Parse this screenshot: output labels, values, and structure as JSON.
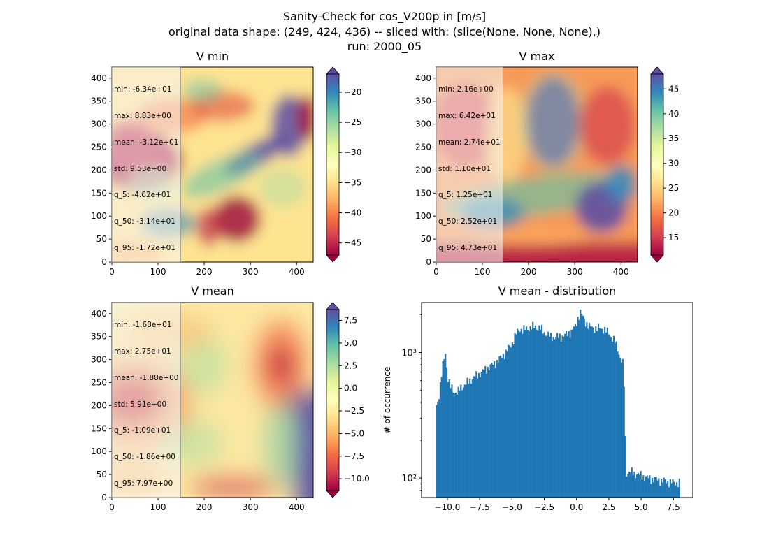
{
  "figure": {
    "title_lines": [
      "Sanity-Check for cos_V200p in [m/s]",
      "original data shape: (249, 424, 436) -- sliced with: (slice(None, None, None),)",
      "run: 2000_05"
    ]
  },
  "chart_data": [
    {
      "type": "heatmap",
      "title": "V min",
      "colormap": "Spectral",
      "xlim": [
        0,
        436
      ],
      "ylim": [
        0,
        424
      ],
      "x_ticks": [
        "0",
        "100",
        "200",
        "300",
        "400"
      ],
      "y_ticks": [
        "0",
        "50",
        "100",
        "150",
        "200",
        "250",
        "300",
        "350",
        "400"
      ],
      "colorbar": {
        "range": [
          -47,
          -17
        ],
        "ticks": [
          "−45",
          "−40",
          "−35",
          "−30",
          "−25",
          "−20"
        ],
        "tick_values": [
          -45,
          -40,
          -35,
          -30,
          -25,
          -20
        ],
        "extend": "both"
      },
      "stats": [
        "min: -6.34e+01",
        "max: 8.83e+00",
        "mean: -3.12e+01",
        "std: 9.53e+00",
        "q_5: -4.62e+01",
        "q_50: -3.14e+01",
        "q_95: -1.72e+01"
      ]
    },
    {
      "type": "heatmap",
      "title": "V max",
      "colormap": "Spectral",
      "xlim": [
        0,
        436
      ],
      "ylim": [
        0,
        424
      ],
      "x_ticks": [
        "0",
        "100",
        "200",
        "300",
        "400"
      ],
      "y_ticks": [
        "0",
        "50",
        "100",
        "150",
        "200",
        "250",
        "300",
        "350",
        "400"
      ],
      "colorbar": {
        "range": [
          11.5,
          48
        ],
        "ticks": [
          "15",
          "20",
          "25",
          "30",
          "35",
          "40",
          "45"
        ],
        "tick_values": [
          15,
          20,
          25,
          30,
          35,
          40,
          45
        ],
        "extend": "both"
      },
      "stats": [
        "min: 2.16e+00",
        "max: 6.42e+01",
        "mean: 2.74e+01",
        "std: 1.10e+01",
        "q_5: 1.25e+01",
        "q_50: 2.52e+01",
        "q_95: 4.73e+01"
      ]
    },
    {
      "type": "heatmap",
      "title": "V mean",
      "colormap": "Spectral",
      "xlim": [
        0,
        436
      ],
      "ylim": [
        0,
        424
      ],
      "x_ticks": [
        "0",
        "100",
        "200",
        "300",
        "400"
      ],
      "y_ticks": [
        "0",
        "50",
        "100",
        "150",
        "200",
        "250",
        "300",
        "350",
        "400"
      ],
      "colorbar": {
        "range": [
          -11.3,
          8.7
        ],
        "ticks": [
          "−10.0",
          "−7.5",
          "−5.0",
          "−2.5",
          "0.0",
          "2.5",
          "5.0",
          "7.5"
        ],
        "tick_values": [
          -10,
          -7.5,
          -5,
          -2.5,
          0,
          2.5,
          5,
          7.5
        ],
        "extend": "both"
      },
      "stats": [
        "min: -1.68e+01",
        "max: 2.75e+01",
        "mean: -1.88e+00",
        "std: 5.91e+00",
        "q_5: -1.09e+01",
        "q_50: -1.86e+00",
        "q_95: 7.97e+00"
      ]
    },
    {
      "type": "bar",
      "subtype": "histogram",
      "title": "V mean - distribution",
      "xlabel": "",
      "ylabel": "# of occurrence",
      "yscale": "log",
      "xlim": [
        -12.0,
        9.0
      ],
      "ylim": [
        70,
        2500
      ],
      "x_ticks": [
        "−10.0",
        "−7.5",
        "−5.0",
        "−2.5",
        "0.0",
        "2.5",
        "5.0",
        "7.5"
      ],
      "x_tick_values": [
        -10,
        -7.5,
        -5,
        -2.5,
        0,
        2.5,
        5,
        7.5
      ],
      "y_ticks": [
        "10²",
        "10³"
      ],
      "y_tick_values": [
        100,
        1000
      ],
      "color": "#1f77b4",
      "bin_range": [
        -10.9,
        8.0
      ],
      "envelope": [
        [
          -10.9,
          370
        ],
        [
          -10.7,
          420
        ],
        [
          -10.5,
          600
        ],
        [
          -10.3,
          850
        ],
        [
          -10.15,
          1000
        ],
        [
          -10.0,
          650
        ],
        [
          -9.8,
          540
        ],
        [
          -9.5,
          490
        ],
        [
          -9.2,
          480
        ],
        [
          -9.0,
          520
        ],
        [
          -8.5,
          570
        ],
        [
          -8.0,
          630
        ],
        [
          -7.5,
          680
        ],
        [
          -7.0,
          740
        ],
        [
          -6.5,
          800
        ],
        [
          -6.0,
          880
        ],
        [
          -5.5,
          1000
        ],
        [
          -5.0,
          1180
        ],
        [
          -4.7,
          1400
        ],
        [
          -4.4,
          1560
        ],
        [
          -4.2,
          1500
        ],
        [
          -3.8,
          1560
        ],
        [
          -3.2,
          1610
        ],
        [
          -2.8,
          1560
        ],
        [
          -2.5,
          1450
        ],
        [
          -2.0,
          1330
        ],
        [
          -1.5,
          1330
        ],
        [
          -1.0,
          1360
        ],
        [
          -0.5,
          1450
        ],
        [
          -0.1,
          1600
        ],
        [
          0.1,
          1900
        ],
        [
          0.3,
          2100
        ],
        [
          0.6,
          1800
        ],
        [
          1.0,
          1600
        ],
        [
          1.5,
          1560
        ],
        [
          2.0,
          1560
        ],
        [
          2.5,
          1420
        ],
        [
          3.0,
          1200
        ],
        [
          3.4,
          900
        ],
        [
          3.6,
          800
        ],
        [
          3.8,
          110
        ],
        [
          4.2,
          112
        ],
        [
          4.6,
          108
        ],
        [
          5.0,
          105
        ],
        [
          5.5,
          100
        ],
        [
          6.0,
          98
        ],
        [
          6.5,
          96
        ],
        [
          7.0,
          94
        ],
        [
          7.5,
          92
        ],
        [
          8.0,
          92
        ]
      ]
    }
  ]
}
